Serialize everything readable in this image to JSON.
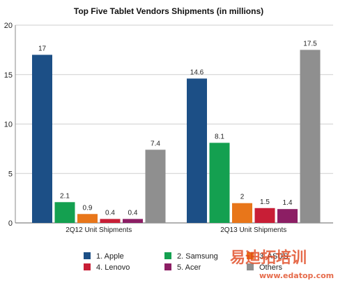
{
  "chart_data": {
    "type": "bar",
    "title": "Top Five Tablet Vendors Shipments (in millions)",
    "categories": [
      "2Q12 Unit Shipments",
      "2Q13 Unit Shipments"
    ],
    "series": [
      {
        "name": "1. Apple",
        "values": [
          17,
          14.6
        ],
        "labels": [
          "17",
          "14.6"
        ],
        "color": "#1c4f86"
      },
      {
        "name": "2. Samsung",
        "values": [
          2.1,
          8.1
        ],
        "labels": [
          "2.1",
          "8.1"
        ],
        "color": "#14a050"
      },
      {
        "name": "3. ASUS",
        "values": [
          0.9,
          2
        ],
        "labels": [
          "0.9",
          "2"
        ],
        "color": "#e8761a"
      },
      {
        "name": "4. Lenovo",
        "values": [
          0.4,
          1.5
        ],
        "labels": [
          "0.4",
          "1.5"
        ],
        "color": "#c81e36"
      },
      {
        "name": "5. Acer",
        "values": [
          0.4,
          1.4
        ],
        "labels": [
          "0.4",
          "1.4"
        ],
        "color": "#8c1e64"
      },
      {
        "name": "Others",
        "values": [
          7.4,
          17.5
        ],
        "labels": [
          "7.4",
          "17.5"
        ],
        "color": "#8f8f8f"
      }
    ],
    "ylim": [
      0,
      20
    ],
    "yticks": [
      "0",
      "5",
      "10",
      "15",
      "20"
    ],
    "grid": true,
    "legend": "bottom"
  },
  "watermark": {
    "cn": "易迪拓培训",
    "url": "www.edatop.com",
    "color": "#e0461e"
  }
}
